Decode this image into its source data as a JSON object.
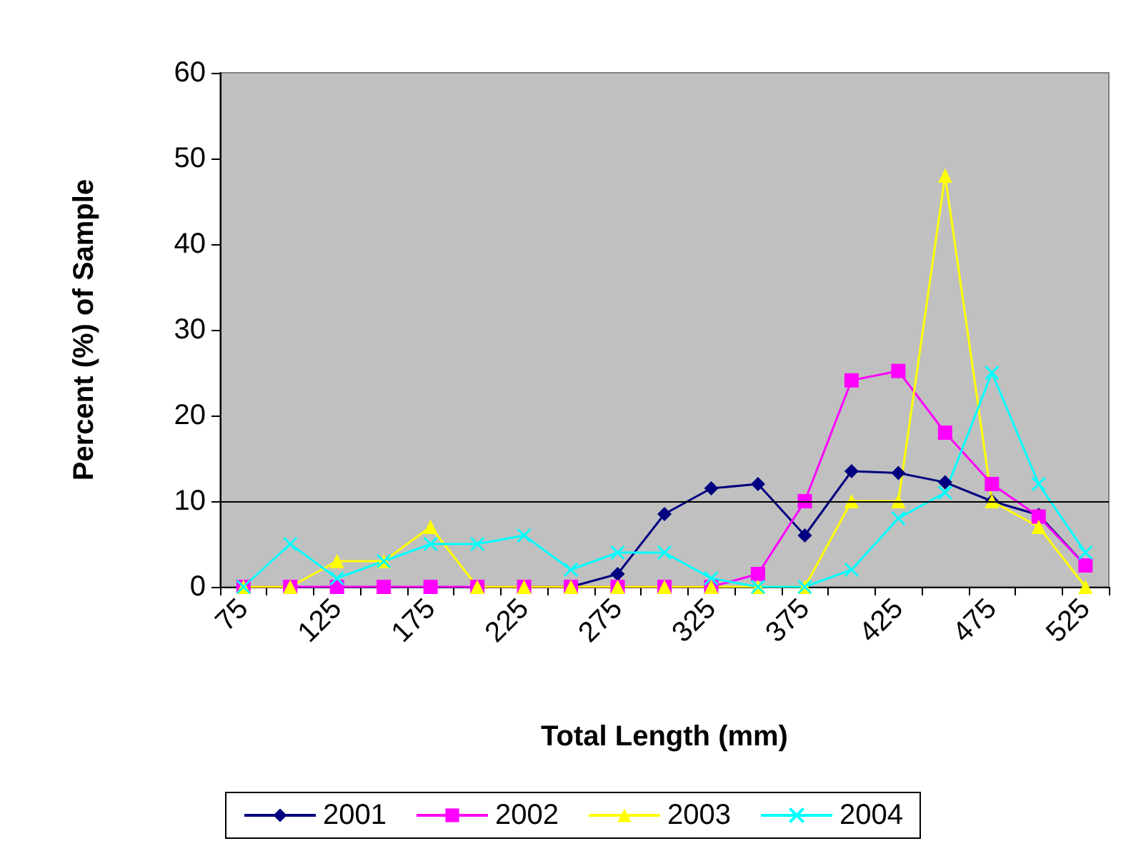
{
  "chart_data": {
    "type": "line",
    "xlabel": "Total Length (mm)",
    "ylabel": "Percent (%) of Sample",
    "categories": [
      "75",
      null,
      "125",
      null,
      "175",
      null,
      "225",
      null,
      "275",
      null,
      "325",
      null,
      "375",
      null,
      "425",
      null,
      "475",
      null,
      "525"
    ],
    "series": [
      {
        "name": "2001",
        "color": "#000080",
        "marker": "diamond",
        "values": [
          null,
          null,
          null,
          null,
          null,
          null,
          0,
          0,
          1.5,
          8.5,
          11.5,
          12,
          6,
          13.5,
          13.3,
          12.2,
          10,
          8.4,
          2.5
        ]
      },
      {
        "name": "2002",
        "color": "#ff00ff",
        "marker": "square",
        "values": [
          0,
          0,
          0,
          0,
          0,
          0,
          0,
          0,
          0,
          0,
          0,
          1.5,
          10,
          24.1,
          25.2,
          18,
          12,
          8.2,
          2.5
        ]
      },
      {
        "name": "2003",
        "color": "#ffff00",
        "marker": "triangle",
        "values": [
          0,
          0,
          3,
          3,
          7,
          0,
          0,
          0,
          0,
          0,
          0,
          0,
          0,
          10,
          10,
          48,
          10,
          7,
          0
        ]
      },
      {
        "name": "2004",
        "color": "#00ffff",
        "marker": "cross",
        "values": [
          0,
          5,
          1,
          3,
          5,
          5,
          6,
          2,
          4,
          4,
          1,
          0,
          0,
          2,
          8,
          11,
          25,
          12,
          4
        ]
      }
    ],
    "ylim": [
      0,
      60
    ],
    "yticks": [
      0,
      10,
      20,
      30,
      40,
      50,
      60
    ],
    "grid": false,
    "ref_lines": [
      {
        "axis": "y",
        "value": 10,
        "color": "#000000"
      }
    ],
    "legend": "bottom"
  }
}
